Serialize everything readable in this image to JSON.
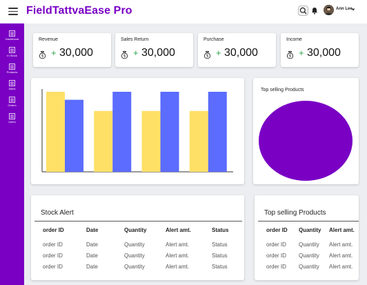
{
  "app": {
    "title": "FieldTattvaEase Pro"
  },
  "header": {
    "user_name": "Ann Lee"
  },
  "sidebar": {
    "items": [
      {
        "label": "Dashboard",
        "icon": "dashboard-icon"
      },
      {
        "label": "In Stock",
        "icon": "in-stock-icon"
      },
      {
        "label": "Products",
        "icon": "products-icon"
      },
      {
        "label": "Sales",
        "icon": "sales-icon"
      },
      {
        "label": "Orders",
        "icon": "orders-icon"
      },
      {
        "label": "Users",
        "icon": "users-icon"
      }
    ]
  },
  "stats": [
    {
      "label": "Revenue",
      "value": "30,000"
    },
    {
      "label": "Sales Return",
      "value": "30,000"
    },
    {
      "label": "Purchase",
      "value": "30,000"
    },
    {
      "label": "Income",
      "value": "30,000"
    }
  ],
  "colors": {
    "brand": "#7a00c4",
    "bar_a": "#ffe066",
    "bar_b": "#5b6cff",
    "pie": "#7a00c4",
    "plus": "#2da44e"
  },
  "chart_data": [
    {
      "type": "bar",
      "categories": [
        "",
        "",
        "",
        ""
      ],
      "series": [
        {
          "values": [
            100,
            76,
            76,
            76
          ]
        },
        {
          "values": [
            90,
            100,
            100,
            100
          ]
        }
      ],
      "ylim": [
        0,
        100
      ],
      "grid": false
    },
    {
      "type": "pie",
      "title": "Top selling Products",
      "values": [
        100
      ]
    }
  ],
  "stock_alert": {
    "title": "Stock Alert",
    "columns": [
      "order ID",
      "Date",
      "Quantity",
      "Alert amt.",
      "Status"
    ],
    "rows": [
      [
        "order ID",
        "Date",
        "Quantity",
        "Alert amt.",
        "Status"
      ],
      [
        "order ID",
        "Date",
        "Quantity",
        "Alert amt.",
        "Status"
      ],
      [
        "order ID",
        "Date",
        "Quantity",
        "Alert amt.",
        "Status"
      ]
    ]
  },
  "top_products": {
    "title": "Top selling Products",
    "columns": [
      "order ID",
      "Quantity",
      "Alert amt."
    ],
    "rows": [
      [
        "order ID",
        "Quantity",
        "Alert amt."
      ],
      [
        "order ID",
        "Quantity",
        "Alert amt."
      ],
      [
        "order ID",
        "Quantity",
        "Alert amt."
      ]
    ]
  }
}
